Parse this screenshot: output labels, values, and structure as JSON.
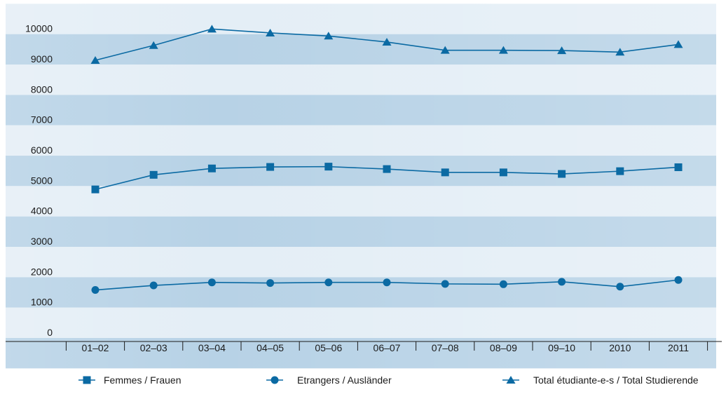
{
  "chart_data": {
    "type": "line",
    "categories": [
      "01–02",
      "02–03",
      "03–04",
      "04–05",
      "05–06",
      "06–07",
      "07–08",
      "08–09",
      "09–10",
      "2010",
      "2011"
    ],
    "series": [
      {
        "name": "Femmes / Frauen",
        "marker": "square",
        "values": [
          4890,
          5370,
          5580,
          5630,
          5640,
          5560,
          5450,
          5450,
          5400,
          5490,
          5620
        ]
      },
      {
        "name": "Etrangers / Ausländer",
        "marker": "circle",
        "values": [
          1580,
          1730,
          1830,
          1810,
          1830,
          1830,
          1780,
          1770,
          1850,
          1690,
          1910
        ]
      },
      {
        "name": "Total étudiante-e-s / Total Studierende",
        "marker": "triangle",
        "values": [
          9140,
          9630,
          10170,
          10040,
          9940,
          9740,
          9470,
          9470,
          9460,
          9410,
          9660
        ]
      }
    ],
    "yticks": [
      0,
      1000,
      2000,
      3000,
      4000,
      5000,
      6000,
      7000,
      8000,
      9000,
      10000
    ],
    "ylim": [
      -1000,
      11000
    ],
    "title": "",
    "xlabel": "",
    "ylabel": "",
    "grid": "horizontal bands",
    "legend_position": "bottom"
  },
  "colors": {
    "series": "#0b6aa3",
    "band_dark": "#b7d2e6",
    "band_light": "#e4eef6",
    "axis": "#1b1b1b"
  }
}
